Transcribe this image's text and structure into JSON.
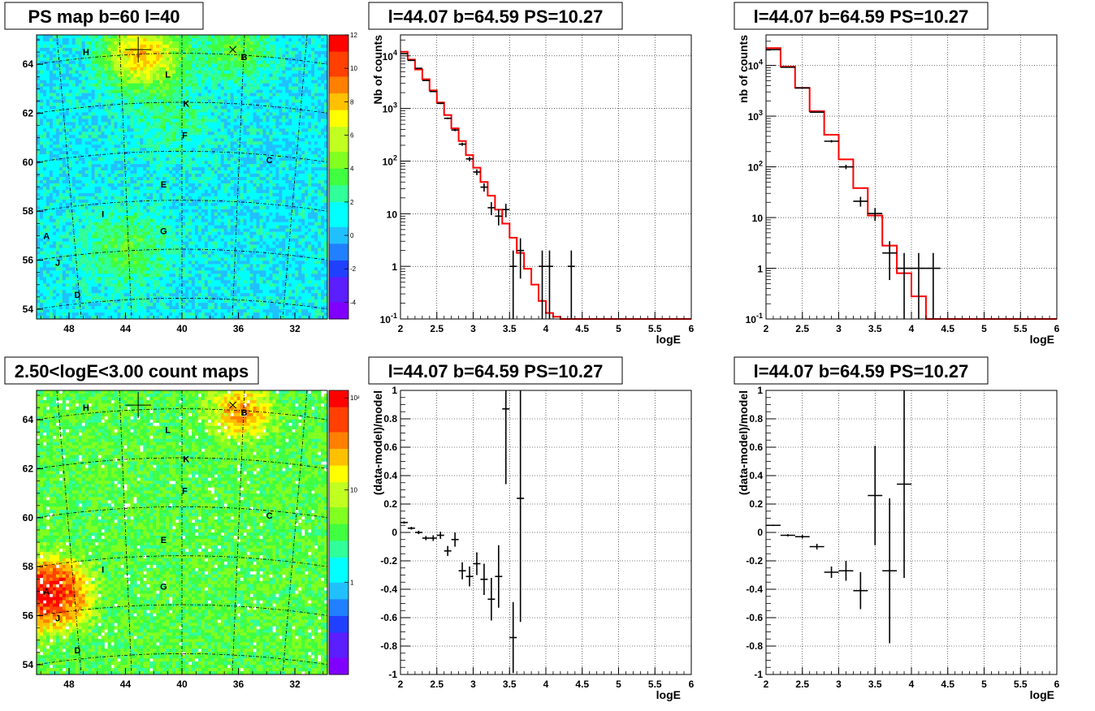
{
  "chart_data": [
    {
      "id": "psmap",
      "type": "heatmap",
      "title": "PS map b=60 l=40",
      "x_ticks": [
        "48",
        "44",
        "40",
        "36",
        "32"
      ],
      "y_ticks": [
        "54",
        "56",
        "58",
        "60",
        "62",
        "64"
      ],
      "xlim": [
        50.3,
        29.7
      ],
      "ylim": [
        53.6,
        65.2
      ],
      "colorbar_ticks": [
        "12",
        "10",
        "8",
        "6",
        "4",
        "2",
        "0",
        "-2",
        "-4"
      ],
      "colorbar_range": [
        -5,
        12
      ],
      "base_level": 1.0,
      "hotspots": [
        {
          "l": 42.7,
          "b": 64.4,
          "amp": 7,
          "r": 1.0
        },
        {
          "l": 36.0,
          "b": 64.5,
          "amp": 3,
          "r": 0.8
        },
        {
          "l": 44.0,
          "b": 56.5,
          "amp": 2.5,
          "r": 1.1
        },
        {
          "l": 40.5,
          "b": 61.5,
          "amp": 1.5,
          "r": 1.0
        }
      ],
      "sources": [
        {
          "name": "H",
          "l": 46.8,
          "b": 64.5
        },
        {
          "name": "B",
          "l": 35.6,
          "b": 64.3
        },
        {
          "name": "L",
          "l": 41.0,
          "b": 63.6
        },
        {
          "name": "K",
          "l": 39.7,
          "b": 62.4
        },
        {
          "name": "F",
          "l": 39.8,
          "b": 61.1
        },
        {
          "name": "C",
          "l": 33.8,
          "b": 60.1
        },
        {
          "name": "E",
          "l": 41.3,
          "b": 59.1
        },
        {
          "name": "I",
          "l": 45.6,
          "b": 57.9
        },
        {
          "name": "G",
          "l": 41.3,
          "b": 57.2
        },
        {
          "name": "A",
          "l": 49.6,
          "b": 57.0
        },
        {
          "name": "J",
          "l": 48.8,
          "b": 55.9
        },
        {
          "name": "D",
          "l": 47.4,
          "b": 54.6
        }
      ],
      "cross": {
        "l": 43.1,
        "b": 64.6
      }
    },
    {
      "id": "countmap",
      "type": "heatmap",
      "title": "2.50<logE<3.00 count maps",
      "x_ticks": [
        "48",
        "44",
        "40",
        "36",
        "32"
      ],
      "y_ticks": [
        "54",
        "56",
        "58",
        "60",
        "62",
        "64"
      ],
      "xlim": [
        50.3,
        29.7
      ],
      "ylim": [
        53.6,
        65.2
      ],
      "colorbar_ticks": [
        "10²",
        "10",
        "1"
      ],
      "colorbar_scale": "log",
      "colorbar_range": [
        0.1,
        120
      ],
      "base_level": 4,
      "hotspots": [
        {
          "l": 49.5,
          "b": 56.9,
          "amp": 90,
          "r": 0.7
        },
        {
          "l": 35.8,
          "b": 64.3,
          "amp": 25,
          "r": 0.6
        }
      ],
      "sources": [
        {
          "name": "H",
          "l": 46.8,
          "b": 64.5
        },
        {
          "name": "B",
          "l": 35.6,
          "b": 64.3
        },
        {
          "name": "L",
          "l": 41.0,
          "b": 63.6
        },
        {
          "name": "K",
          "l": 39.7,
          "b": 62.4
        },
        {
          "name": "F",
          "l": 39.8,
          "b": 61.1
        },
        {
          "name": "C",
          "l": 33.8,
          "b": 60.1
        },
        {
          "name": "E",
          "l": 41.3,
          "b": 59.1
        },
        {
          "name": "I",
          "l": 45.6,
          "b": 57.9
        },
        {
          "name": "G",
          "l": 41.3,
          "b": 57.2
        },
        {
          "name": "A",
          "l": 49.6,
          "b": 57.0
        },
        {
          "name": "J",
          "l": 48.8,
          "b": 55.9
        },
        {
          "name": "D",
          "l": 47.4,
          "b": 54.6
        }
      ],
      "cross": {
        "l": 43.1,
        "b": 64.6
      }
    },
    {
      "id": "spec1",
      "type": "line",
      "title": "l=44.07 b=64.59 PS=10.27",
      "xlabel": "logE",
      "ylabel": "Nb of counts",
      "xlim": [
        2,
        6
      ],
      "ylim": [
        0.1,
        25000
      ],
      "y_scale": "log",
      "x_ticks": [
        "2",
        "2.5",
        "3",
        "3.5",
        "4",
        "4.5",
        "5",
        "5.5",
        "6"
      ],
      "y_ticks": [
        {
          "v": 10000,
          "t": "10^4"
        },
        {
          "v": 1000,
          "t": "10^3"
        },
        {
          "v": 100,
          "t": "10^2"
        },
        {
          "v": 10,
          "t": "10"
        },
        {
          "v": 1,
          "t": "1"
        },
        {
          "v": 0.1,
          "t": "10^-1"
        }
      ],
      "model_edges": [
        2,
        2.1,
        2.2,
        2.3,
        2.4,
        2.5,
        2.6,
        2.7,
        2.8,
        2.9,
        3,
        3.1,
        3.2,
        3.3,
        3.4,
        3.5,
        3.6,
        3.7,
        3.8,
        3.9,
        4,
        4.1,
        4.2,
        6
      ],
      "model_values": [
        12000,
        8500,
        5500,
        3600,
        2200,
        1300,
        750,
        420,
        240,
        130,
        75,
        40,
        22,
        12,
        6.5,
        3.5,
        1.8,
        0.9,
        0.45,
        0.22,
        0.13,
        0.11,
        0.1
      ],
      "data_points": [
        {
          "x": 2.05,
          "y": 11000,
          "dx": 0.05
        },
        {
          "x": 2.15,
          "y": 8200,
          "dx": 0.05
        },
        {
          "x": 2.25,
          "y": 5800,
          "dx": 0.05
        },
        {
          "x": 2.35,
          "y": 3400,
          "dx": 0.05
        },
        {
          "x": 2.45,
          "y": 2100,
          "dx": 0.05
        },
        {
          "x": 2.55,
          "y": 1250,
          "dx": 0.05
        },
        {
          "x": 2.65,
          "y": 650,
          "dx": 0.05
        },
        {
          "x": 2.75,
          "y": 390,
          "dx": 0.05
        },
        {
          "x": 2.85,
          "y": 210,
          "dx": 0.05
        },
        {
          "x": 2.95,
          "y": 110,
          "dx": 0.05
        },
        {
          "x": 3.05,
          "y": 62,
          "dx": 0.05
        },
        {
          "x": 3.15,
          "y": 32,
          "dx": 0.05
        },
        {
          "x": 3.25,
          "y": 13,
          "dx": 0.05
        },
        {
          "x": 3.35,
          "y": 9,
          "dx": 0.05
        },
        {
          "x": 3.45,
          "y": 12,
          "dx": 0.05
        },
        {
          "x": 3.55,
          "y": 1,
          "dx": 0.05
        },
        {
          "x": 3.65,
          "y": 2,
          "dx": 0.05
        },
        {
          "x": 3.95,
          "y": 1,
          "dx": 0.05
        },
        {
          "x": 4.05,
          "y": 1,
          "dx": 0.05
        },
        {
          "x": 4.35,
          "y": 1,
          "dx": 0.05
        }
      ]
    },
    {
      "id": "spec2",
      "type": "line",
      "title": "l=44.07 b=64.59 PS=10.27",
      "xlabel": "logE",
      "ylabel": "nb of counts",
      "xlim": [
        2,
        6
      ],
      "ylim": [
        0.1,
        40000
      ],
      "y_scale": "log",
      "x_ticks": [
        "2",
        "2.5",
        "3",
        "3.5",
        "4",
        "4.5",
        "5",
        "5.5",
        "6"
      ],
      "y_ticks": [
        {
          "v": 10000,
          "t": "10^4"
        },
        {
          "v": 1000,
          "t": "10^3"
        },
        {
          "v": 100,
          "t": "10^2"
        },
        {
          "v": 10,
          "t": "10"
        },
        {
          "v": 1,
          "t": "1"
        },
        {
          "v": 0.1,
          "t": "10^-1"
        }
      ],
      "model_edges": [
        2,
        2.2,
        2.4,
        2.6,
        2.8,
        3,
        3.2,
        3.4,
        3.6,
        3.8,
        4,
        4.2,
        6
      ],
      "model_values": [
        22000,
        9500,
        3600,
        1250,
        430,
        140,
        38,
        11,
        2.8,
        0.8,
        0.28,
        0.1
      ],
      "data_points": [
        {
          "x": 2.1,
          "y": 20500,
          "dx": 0.1
        },
        {
          "x": 2.3,
          "y": 9200,
          "dx": 0.1
        },
        {
          "x": 2.5,
          "y": 3600,
          "dx": 0.1
        },
        {
          "x": 2.7,
          "y": 1200,
          "dx": 0.1
        },
        {
          "x": 2.9,
          "y": 320,
          "dx": 0.1
        },
        {
          "x": 3.1,
          "y": 100,
          "dx": 0.1
        },
        {
          "x": 3.3,
          "y": 21,
          "dx": 0.1
        },
        {
          "x": 3.5,
          "y": 12,
          "dx": 0.1
        },
        {
          "x": 3.7,
          "y": 2,
          "dx": 0.1
        },
        {
          "x": 3.9,
          "y": 1,
          "dx": 0.1
        },
        {
          "x": 4.1,
          "y": 1,
          "dx": 0.1
        },
        {
          "x": 4.3,
          "y": 1,
          "dx": 0.1
        }
      ]
    },
    {
      "id": "res1",
      "type": "scatter",
      "title": "l=44.07 b=64.59 PS=10.27",
      "xlabel": "logE",
      "ylabel": "(data-model)/model",
      "xlim": [
        2,
        6
      ],
      "ylim": [
        -1,
        1
      ],
      "x_ticks": [
        "2",
        "2.5",
        "3",
        "3.5",
        "4",
        "4.5",
        "5",
        "5.5",
        "6"
      ],
      "y_ticks": [
        "-1",
        "-0.8",
        "-0.6",
        "-0.4",
        "-0.2",
        "0",
        "0.2",
        "0.4",
        "0.6",
        "0.8",
        "1"
      ],
      "data_points": [
        {
          "x": 2.05,
          "y": 0.07,
          "dx": 0.05,
          "dy": 0.008
        },
        {
          "x": 2.15,
          "y": 0.03,
          "dx": 0.05,
          "dy": 0.01
        },
        {
          "x": 2.25,
          "y": 0.0,
          "dx": 0.05,
          "dy": 0.012
        },
        {
          "x": 2.35,
          "y": -0.04,
          "dx": 0.05,
          "dy": 0.015
        },
        {
          "x": 2.45,
          "y": -0.04,
          "dx": 0.05,
          "dy": 0.02
        },
        {
          "x": 2.55,
          "y": -0.02,
          "dx": 0.05,
          "dy": 0.025
        },
        {
          "x": 2.65,
          "y": -0.13,
          "dx": 0.05,
          "dy": 0.035
        },
        {
          "x": 2.75,
          "y": -0.05,
          "dx": 0.05,
          "dy": 0.05
        },
        {
          "x": 2.85,
          "y": -0.27,
          "dx": 0.05,
          "dy": 0.06
        },
        {
          "x": 2.95,
          "y": -0.31,
          "dx": 0.05,
          "dy": 0.07
        },
        {
          "x": 3.05,
          "y": -0.22,
          "dx": 0.05,
          "dy": 0.08
        },
        {
          "x": 3.15,
          "y": -0.33,
          "dx": 0.05,
          "dy": 0.11
        },
        {
          "x": 3.25,
          "y": -0.47,
          "dx": 0.05,
          "dy": 0.15
        },
        {
          "x": 3.35,
          "y": -0.31,
          "dx": 0.05,
          "dy": 0.22
        },
        {
          "x": 3.45,
          "y": 0.87,
          "dx": 0.05,
          "dy": 0.53
        },
        {
          "x": 3.55,
          "y": -0.74,
          "dx": 0.05,
          "dy": 0.25
        },
        {
          "x": 3.65,
          "y": 0.24,
          "dx": 0.05,
          "dy": 0.87
        }
      ]
    },
    {
      "id": "res2",
      "type": "scatter",
      "title": "l=44.07 b=64.59 PS=10.27",
      "xlabel": "logE",
      "ylabel": "(data-model)/model",
      "xlim": [
        2,
        6
      ],
      "ylim": [
        -1,
        1
      ],
      "x_ticks": [
        "2",
        "2.5",
        "3",
        "3.5",
        "4",
        "4.5",
        "5",
        "5.5",
        "6"
      ],
      "y_ticks": [
        "-1",
        "-0.8",
        "-0.6",
        "-0.4",
        "-0.2",
        "0",
        "0.2",
        "0.4",
        "0.6",
        "0.8",
        "1"
      ],
      "data_points": [
        {
          "x": 2.1,
          "y": 0.05,
          "dx": 0.1,
          "dy": 0.005
        },
        {
          "x": 2.3,
          "y": -0.02,
          "dx": 0.1,
          "dy": 0.008
        },
        {
          "x": 2.5,
          "y": -0.03,
          "dx": 0.1,
          "dy": 0.012
        },
        {
          "x": 2.7,
          "y": -0.1,
          "dx": 0.1,
          "dy": 0.02
        },
        {
          "x": 2.9,
          "y": -0.28,
          "dx": 0.1,
          "dy": 0.04
        },
        {
          "x": 3.1,
          "y": -0.27,
          "dx": 0.1,
          "dy": 0.07
        },
        {
          "x": 3.3,
          "y": -0.41,
          "dx": 0.1,
          "dy": 0.13
        },
        {
          "x": 3.5,
          "y": 0.26,
          "dx": 0.1,
          "dy": 0.35
        },
        {
          "x": 3.7,
          "y": -0.27,
          "dx": 0.1,
          "dy": 0.51
        },
        {
          "x": 3.9,
          "y": 0.34,
          "dx": 0.1,
          "dy": 0.66
        }
      ]
    }
  ]
}
